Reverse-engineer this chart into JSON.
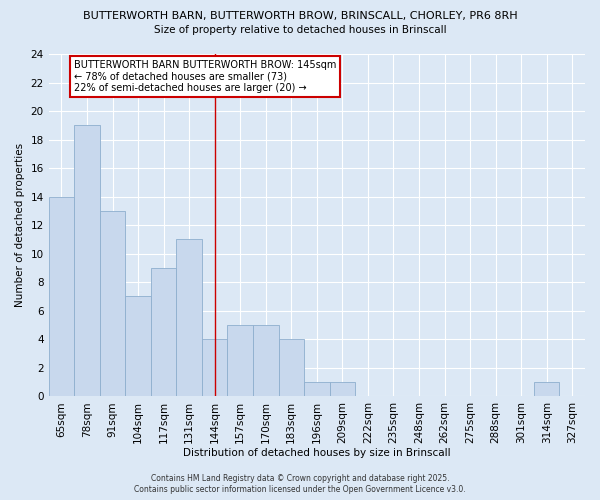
{
  "title_line1": "BUTTERWORTH BARN, BUTTERWORTH BROW, BRINSCALL, CHORLEY, PR6 8RH",
  "title_line2": "Size of property relative to detached houses in Brinscall",
  "xlabel": "Distribution of detached houses by size in Brinscall",
  "ylabel": "Number of detached properties",
  "categories": [
    "65sqm",
    "78sqm",
    "91sqm",
    "104sqm",
    "117sqm",
    "131sqm",
    "144sqm",
    "157sqm",
    "170sqm",
    "183sqm",
    "196sqm",
    "209sqm",
    "222sqm",
    "235sqm",
    "248sqm",
    "262sqm",
    "275sqm",
    "288sqm",
    "301sqm",
    "314sqm",
    "327sqm"
  ],
  "values": [
    14,
    19,
    13,
    7,
    9,
    11,
    4,
    5,
    5,
    4,
    1,
    1,
    0,
    0,
    0,
    0,
    0,
    0,
    0,
    1,
    0
  ],
  "bar_color": "#c8d8ed",
  "bar_edge_color": "#8eaece",
  "highlight_index": 6,
  "highlight_color": "#cc0000",
  "ylim": [
    0,
    24
  ],
  "yticks": [
    0,
    2,
    4,
    6,
    8,
    10,
    12,
    14,
    16,
    18,
    20,
    22,
    24
  ],
  "annotation_line1": "BUTTERWORTH BARN BUTTERWORTH BROW: 145sqm",
  "annotation_line2": "← 78% of detached houses are smaller (73)",
  "annotation_line3": "22% of semi-detached houses are larger (20) →",
  "footer_line1": "Contains HM Land Registry data © Crown copyright and database right 2025.",
  "footer_line2": "Contains public sector information licensed under the Open Government Licence v3.0.",
  "bg_color": "#dce8f5",
  "plot_bg_color": "#dce8f5",
  "grid_color": "#ffffff"
}
